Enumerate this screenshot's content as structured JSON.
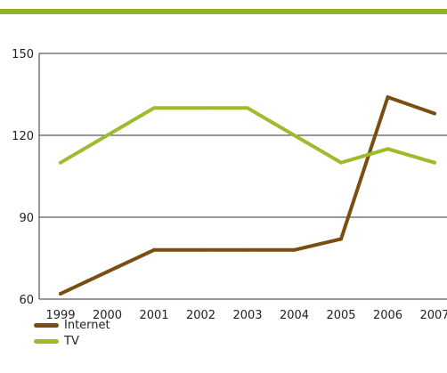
{
  "accent_color": "#8db32c",
  "chart_data": {
    "type": "line",
    "title": "",
    "xlabel": "",
    "ylabel": "",
    "x": [
      "1999",
      "2000",
      "2001",
      "2002",
      "2003",
      "2004",
      "2005",
      "2006",
      "2007"
    ],
    "ylim": [
      60,
      150
    ],
    "yticks": [
      "60",
      "90",
      "120",
      "150"
    ],
    "grid": "horizontal",
    "legend_position": "bottom-left",
    "series": [
      {
        "name": "Internet",
        "color": "#7a4e12",
        "values": [
          62,
          70,
          78,
          78,
          78,
          78,
          82,
          134,
          128
        ]
      },
      {
        "name": "TV",
        "color": "#9cbc2c",
        "values": [
          110,
          120,
          130,
          130,
          130,
          120,
          110,
          115,
          110
        ]
      }
    ]
  }
}
